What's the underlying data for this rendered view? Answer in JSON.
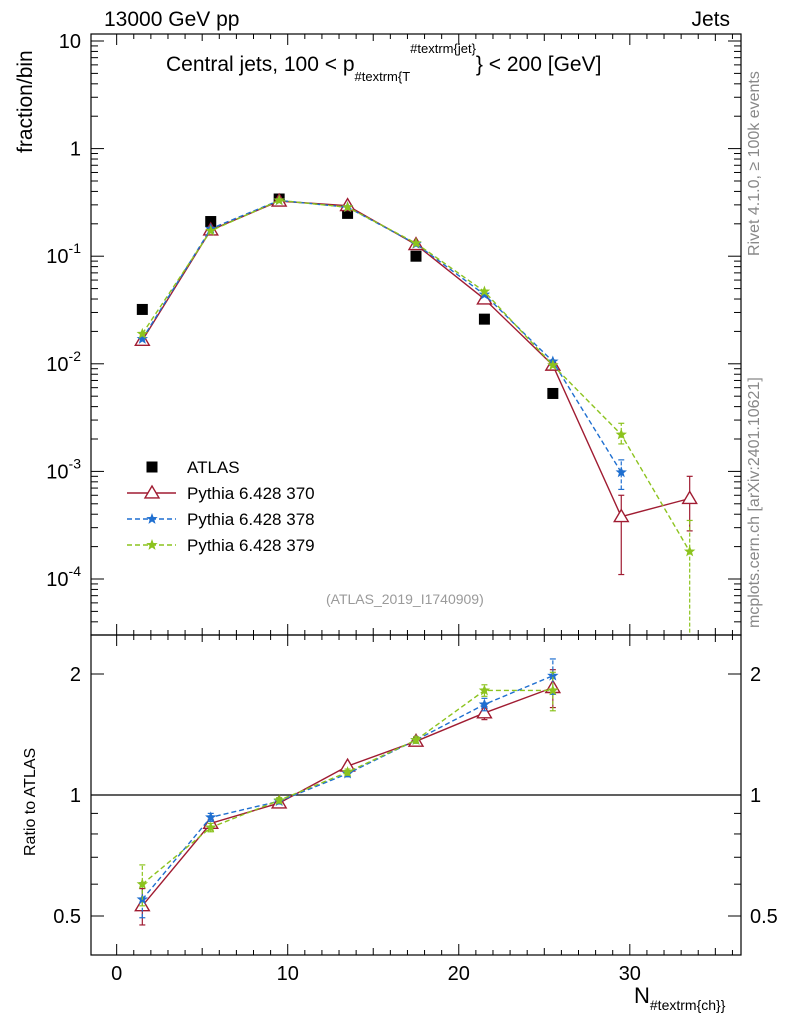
{
  "header": {
    "left": "13000 GeV pp",
    "right": "Jets"
  },
  "side_notes": {
    "rivet": "Rivet 4.1.0, ≥ 100k events",
    "mcplots": "mcplots.cern.ch [arXiv:2401.10621]"
  },
  "chart_data": [
    {
      "type": "scatter",
      "panel": "main",
      "title": "Central jets, 100 < p_{#textrm{T}}^{#textrm{jet}} < 200 [GeV]",
      "title_parts": {
        "before": "Central jets, 100 < p",
        "sub": "#textrm{T",
        "sup": "#textrm{jet}",
        "after": "} < 200 [GeV]"
      },
      "watermark": "(ATLAS_2019_I1740909)",
      "ylabel": "fraction/bin",
      "yscale": "log",
      "xlim": [
        -1.5,
        36.5
      ],
      "ylim": [
        3e-05,
        12
      ],
      "ytick_labels": [
        "10",
        "1",
        "10^-1",
        "10^-2",
        "10^-3",
        "10^-4"
      ],
      "legend_position": "lower-left",
      "series": [
        {
          "name": "ATLAS",
          "color": "#000000",
          "marker": "square",
          "style": "none",
          "x": [
            1.5,
            5.5,
            9.5,
            13.5,
            17.5,
            21.5,
            25.5
          ],
          "y": [
            0.032,
            0.21,
            0.34,
            0.25,
            0.1,
            0.026,
            0.0053
          ]
        },
        {
          "name": "Pythia 6.428 370",
          "color": "#a01c32",
          "marker": "triangle-open",
          "style": "solid",
          "x": [
            1.5,
            5.5,
            9.5,
            13.5,
            17.5,
            21.5,
            25.5,
            29.5,
            33.5
          ],
          "y": [
            0.0165,
            0.175,
            0.325,
            0.295,
            0.128,
            0.04,
            0.0097,
            0.00038,
            0.00056
          ],
          "err_low": [
            0,
            0,
            0,
            0,
            0,
            0,
            0,
            0.00027,
            0.00028
          ],
          "err_high": [
            0,
            0,
            0,
            0,
            0,
            0,
            0,
            0.00022,
            0.00034
          ]
        },
        {
          "name": "Pythia 6.428 378",
          "color": "#1f6fd0",
          "marker": "star",
          "style": "dashed",
          "x": [
            1.5,
            5.5,
            9.5,
            13.5,
            17.5,
            21.5,
            25.5,
            29.5
          ],
          "y": [
            0.017,
            0.18,
            0.33,
            0.285,
            0.13,
            0.044,
            0.0105,
            0.00098
          ],
          "err_low": [
            0,
            0,
            0,
            0,
            0,
            0,
            0,
            0.0003
          ],
          "err_high": [
            0,
            0,
            0,
            0,
            0,
            0,
            0,
            0.0003
          ]
        },
        {
          "name": "Pythia 6.428 379",
          "color": "#8cc31e",
          "marker": "star",
          "style": "dashed",
          "x": [
            1.5,
            5.5,
            9.5,
            13.5,
            17.5,
            21.5,
            25.5,
            29.5,
            33.5
          ],
          "y": [
            0.019,
            0.172,
            0.33,
            0.285,
            0.132,
            0.047,
            0.0097,
            0.0022,
            0.00018
          ],
          "err_low": [
            0,
            0,
            0,
            0,
            0,
            0,
            0,
            0.0004,
            0.00017
          ],
          "err_high": [
            0,
            0,
            0,
            0,
            0,
            0,
            0,
            0.0006,
            0.00017
          ]
        }
      ]
    },
    {
      "type": "scatter",
      "panel": "ratio",
      "ylabel": "Ratio to ATLAS",
      "xlabel": "N_{#textrm{ch}}",
      "xlabel_parts": {
        "main": "N",
        "sub": "#textrm{ch}}"
      },
      "yscale": "log",
      "xlim": [
        -1.5,
        36.5
      ],
      "ylim": [
        0.42,
        2.35
      ],
      "ytick_labels": [
        "0.5",
        "1",
        "2"
      ],
      "xtick_labels": [
        "0",
        "10",
        "20",
        "30"
      ],
      "reference_line": 1,
      "series": [
        {
          "name": "Pythia 6.428 370",
          "color": "#a01c32",
          "marker": "triangle-open",
          "style": "solid",
          "x": [
            1.5,
            5.5,
            9.5,
            13.5,
            17.5,
            21.5,
            25.5
          ],
          "y": [
            0.53,
            0.85,
            0.955,
            1.18,
            1.36,
            1.6,
            1.85
          ],
          "err": [
            0.055,
            0.02,
            0.015,
            0.02,
            0.025,
            0.06,
            0.2
          ]
        },
        {
          "name": "Pythia 6.428 378",
          "color": "#1f6fd0",
          "marker": "star",
          "style": "dashed",
          "x": [
            1.5,
            5.5,
            9.5,
            13.5,
            17.5,
            21.5,
            25.5
          ],
          "y": [
            0.55,
            0.88,
            0.965,
            1.13,
            1.37,
            1.68,
            1.98
          ],
          "err": [
            0.055,
            0.02,
            0.015,
            0.02,
            0.025,
            0.06,
            0.2
          ]
        },
        {
          "name": "Pythia 6.428 379",
          "color": "#8cc31e",
          "marker": "star",
          "style": "dashed",
          "x": [
            1.5,
            5.5,
            9.5,
            13.5,
            17.5,
            21.5,
            25.5
          ],
          "y": [
            0.6,
            0.83,
            0.97,
            1.14,
            1.37,
            1.82,
            1.82
          ],
          "err": [
            0.07,
            0.02,
            0.015,
            0.02,
            0.025,
            0.06,
            0.2
          ]
        }
      ]
    }
  ]
}
